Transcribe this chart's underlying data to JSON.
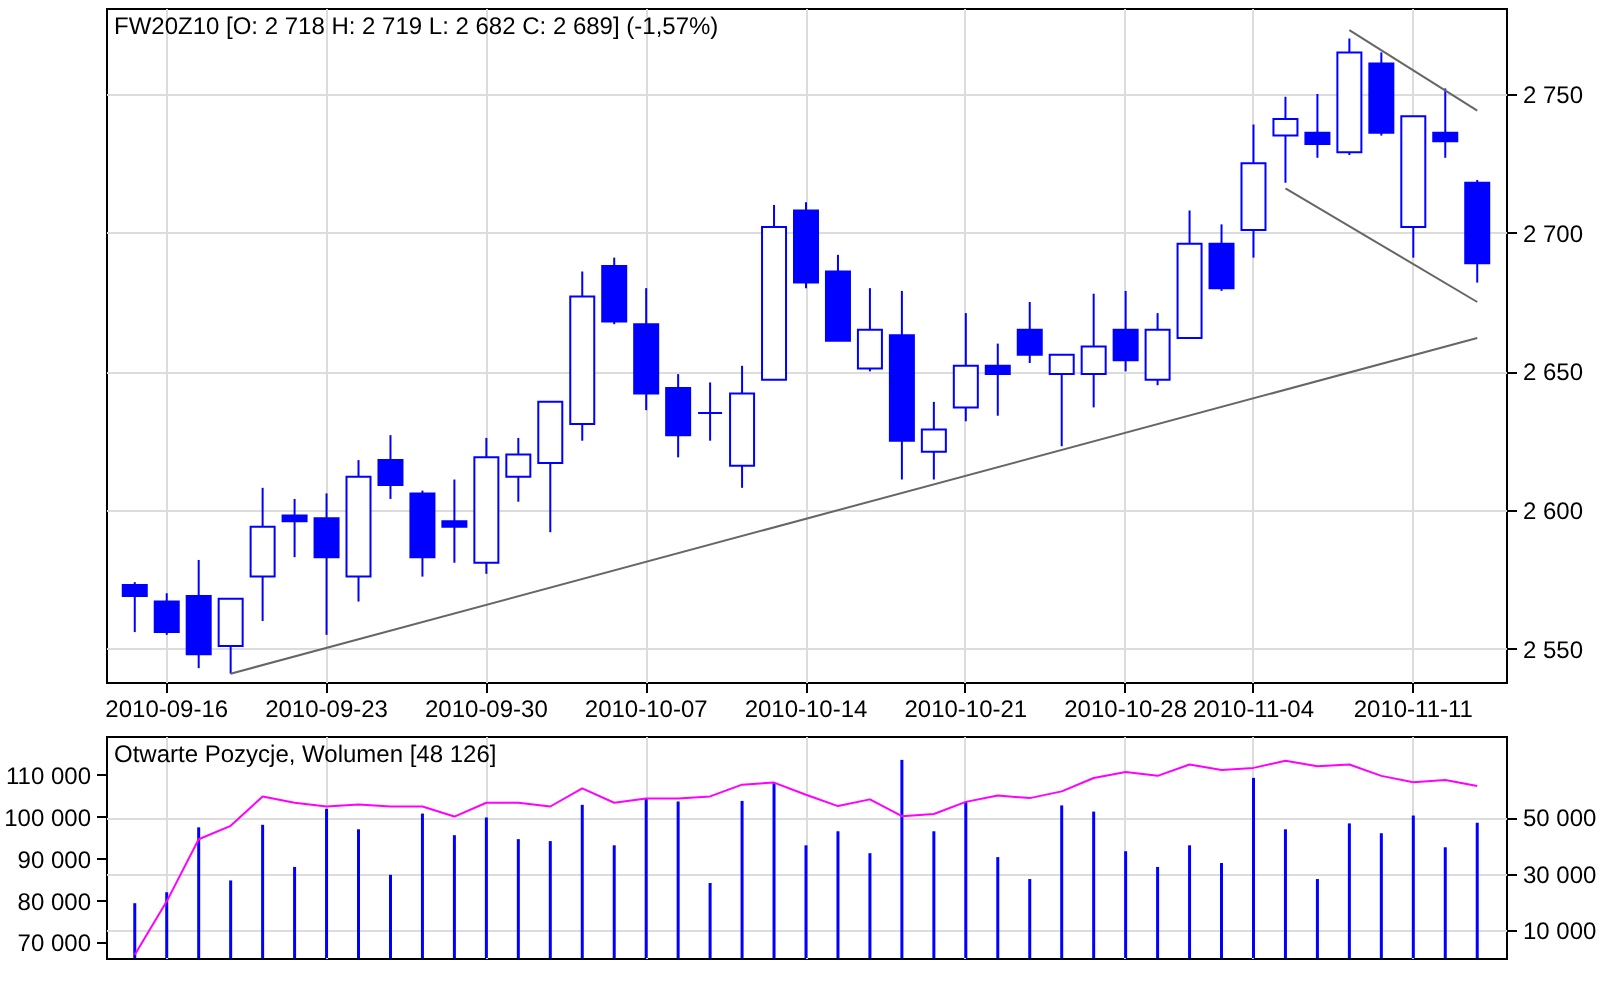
{
  "chart_data": [
    {
      "type": "candlestick",
      "title": "FW20Z10 [O: 2 718 H: 2 719 L: 2 682 C: 2 689] (-1,57%)",
      "color": "#0000ff",
      "categories": [
        null,
        "2010-09-16",
        null,
        null,
        null,
        null,
        "2010-09-23",
        null,
        null,
        null,
        null,
        "2010-09-30",
        null,
        null,
        null,
        null,
        "2010-10-07",
        null,
        null,
        null,
        null,
        "2010-10-14",
        null,
        null,
        null,
        null,
        "2010-10-21",
        null,
        null,
        null,
        null,
        "2010-10-28",
        null,
        null,
        null,
        "2010-11-04",
        null,
        null,
        null,
        null,
        "2010-11-11",
        null,
        null
      ],
      "ohlc": [
        [
          2573,
          2574,
          2556,
          2569
        ],
        [
          2567,
          2570,
          2555,
          2556
        ],
        [
          2569,
          2582,
          2543,
          2548
        ],
        [
          2551,
          2568,
          2541,
          2568
        ],
        [
          2576,
          2608,
          2560,
          2594
        ],
        [
          2598,
          2604,
          2583,
          2596
        ],
        [
          2597,
          2606,
          2555,
          2583
        ],
        [
          2576,
          2618,
          2567,
          2612
        ],
        [
          2618,
          2627,
          2604,
          2609
        ],
        [
          2606,
          2607,
          2576,
          2583
        ],
        [
          2596,
          2611,
          2581,
          2594
        ],
        [
          2581,
          2626,
          2577,
          2619
        ],
        [
          2612,
          2626,
          2603,
          2620
        ],
        [
          2617,
          2639,
          2592,
          2639
        ],
        [
          2631,
          2686,
          2625,
          2677
        ],
        [
          2688,
          2691,
          2667,
          2668
        ],
        [
          2667,
          2680,
          2636,
          2642
        ],
        [
          2644,
          2649,
          2619,
          2627
        ],
        [
          2635,
          2646,
          2625,
          2635
        ],
        [
          2616,
          2652,
          2608,
          2642
        ],
        [
          2647,
          2710,
          2647,
          2702
        ],
        [
          2708,
          2711,
          2680,
          2682
        ],
        [
          2686,
          2692,
          2661,
          2661
        ],
        [
          2651,
          2680,
          2650,
          2665
        ],
        [
          2663,
          2679,
          2611,
          2625
        ],
        [
          2621,
          2639,
          2611,
          2629
        ],
        [
          2637,
          2671,
          2632,
          2652
        ],
        [
          2652,
          2660,
          2634,
          2649
        ],
        [
          2665,
          2675,
          2653,
          2656
        ],
        [
          2649,
          2656,
          2623,
          2656
        ],
        [
          2649,
          2678,
          2637,
          2659
        ],
        [
          2665,
          2679,
          2650,
          2654
        ],
        [
          2647,
          2671,
          2645,
          2665
        ],
        [
          2662,
          2708,
          2662,
          2696
        ],
        [
          2696,
          2703,
          2679,
          2680
        ],
        [
          2701,
          2739,
          2691,
          2725
        ],
        [
          2735,
          2749,
          2718,
          2741
        ],
        [
          2736,
          2750,
          2727,
          2732
        ],
        [
          2729,
          2770,
          2728,
          2765
        ],
        [
          2761,
          2765,
          2735,
          2736
        ],
        [
          2702,
          2742,
          2691,
          2742
        ],
        [
          2736,
          2752,
          2727,
          2733
        ],
        [
          2718,
          2719,
          2682,
          2689
        ]
      ],
      "series": [
        {
          "type": "line",
          "color": "#666666",
          "values": [
            null,
            null,
            null,
            2541,
            null,
            null,
            null,
            null,
            null,
            null,
            null,
            null,
            null,
            null,
            null,
            null,
            null,
            null,
            null,
            null,
            null,
            null,
            null,
            null,
            null,
            null,
            null,
            null,
            null,
            null,
            null,
            null,
            null,
            null,
            null,
            null,
            null,
            null,
            null,
            null,
            null,
            null,
            2662
          ]
        },
        {
          "type": "line",
          "color": "#666666",
          "values": [
            null,
            null,
            null,
            null,
            null,
            null,
            null,
            null,
            null,
            null,
            null,
            null,
            null,
            null,
            null,
            null,
            null,
            null,
            null,
            null,
            null,
            null,
            null,
            null,
            null,
            null,
            null,
            null,
            null,
            null,
            null,
            null,
            null,
            null,
            null,
            null,
            2716,
            null,
            null,
            null,
            null,
            null,
            2675
          ]
        },
        {
          "type": "line",
          "color": "#666666",
          "values": [
            null,
            null,
            null,
            null,
            null,
            null,
            null,
            null,
            null,
            null,
            null,
            null,
            null,
            null,
            null,
            null,
            null,
            null,
            null,
            null,
            null,
            null,
            null,
            null,
            null,
            null,
            null,
            null,
            null,
            null,
            null,
            null,
            null,
            null,
            null,
            null,
            null,
            null,
            2773,
            null,
            null,
            null,
            2744
          ]
        }
      ],
      "ylim": [
        2538,
        2781
      ],
      "yticks": [
        {
          "value": 2550,
          "label": "2 550"
        },
        {
          "value": 2600,
          "label": "2 600"
        },
        {
          "value": 2650,
          "label": "2 650"
        },
        {
          "value": 2700,
          "label": "2 700"
        },
        {
          "value": 2750,
          "label": "2 750"
        }
      ],
      "grid": true
    },
    {
      "type": "bar",
      "title": "Otwarte Pozycje, Wolumen [48 126]",
      "categories": [
        null,
        "2010-09-16",
        null,
        null,
        null,
        null,
        "2010-09-23",
        null,
        null,
        null,
        null,
        "2010-09-30",
        null,
        null,
        null,
        null,
        "2010-10-07",
        null,
        null,
        null,
        null,
        "2010-10-14",
        null,
        null,
        null,
        null,
        "2010-10-21",
        null,
        null,
        null,
        null,
        "2010-10-28",
        null,
        null,
        null,
        "2010-11-04",
        null,
        null,
        null,
        null,
        "2010-11-11",
        null,
        null
      ],
      "tick_labels": "y",
      "series": [
        {
          "type": "bar",
          "axis": "y2",
          "color": "#0000ff",
          "values": [
            19500,
            23400,
            46500,
            27600,
            47400,
            32400,
            53100,
            45800,
            29600,
            51400,
            43700,
            50000,
            42300,
            41600,
            54500,
            40100,
            56600,
            55700,
            26700,
            55900,
            62200,
            40100,
            45100,
            37300,
            70500,
            45100,
            55500,
            35900,
            28100,
            54300,
            52100,
            38000,
            32400,
            40100,
            33800,
            64100,
            45800,
            28100,
            47900,
            44400,
            50700,
            39400,
            48126
          ]
        },
        {
          "type": "line",
          "axis": "y",
          "color": "#ff00ff",
          "values": [
            67100,
            79800,
            94600,
            97800,
            104800,
            103300,
            102400,
            102900,
            102400,
            102400,
            100000,
            103300,
            103300,
            102400,
            106700,
            103300,
            104300,
            104300,
            104800,
            107600,
            108100,
            105200,
            102500,
            104100,
            100100,
            100600,
            103500,
            105000,
            104400,
            106000,
            109200,
            110600,
            109700,
            112400,
            111100,
            111600,
            113300,
            112000,
            112400,
            109700,
            108200,
            108700,
            107300
          ]
        }
      ],
      "ylim": [
        66300,
        119200
      ],
      "yticks": [
        {
          "value": 70000,
          "label": "70 000"
        },
        {
          "value": 80000,
          "label": "80 000"
        },
        {
          "value": 90000,
          "label": "90 000"
        },
        {
          "value": 100000,
          "label": "100 000"
        },
        {
          "value": 110000,
          "label": "110 000"
        }
      ],
      "y2lim": [
        0,
        79000
      ],
      "y2ticks": [
        {
          "value": 10000,
          "label": "10 000"
        },
        {
          "value": 30000,
          "label": "30 000"
        },
        {
          "value": 50000,
          "label": "50 000"
        }
      ],
      "grid": true
    }
  ]
}
